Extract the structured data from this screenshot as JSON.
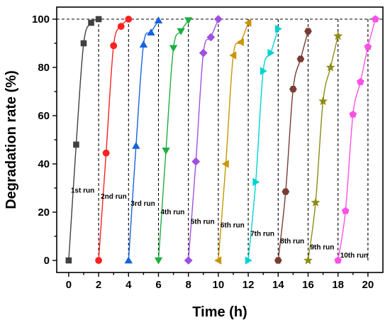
{
  "chart_data": {
    "type": "scatter",
    "title": "",
    "xlabel": "Time (h)",
    "ylabel": "Degradation rate (%)",
    "xlim": [
      -0.8,
      21
    ],
    "ylim": [
      -5,
      105
    ],
    "xticks": [
      0,
      2,
      4,
      6,
      8,
      10,
      12,
      14,
      16,
      18,
      20
    ],
    "yticks": [
      0,
      20,
      40,
      60,
      80,
      100
    ],
    "grid": false,
    "legend": "none",
    "reference_line_y": 100,
    "series": [
      {
        "label": "1st run",
        "color": "#404040",
        "marker": "square",
        "x": [
          0,
          0.5,
          1.0,
          1.5,
          2.0
        ],
        "y": [
          0,
          48,
          90,
          98.5,
          100
        ]
      },
      {
        "label": "2nd run",
        "color": "#ff2020",
        "marker": "circle",
        "x": [
          2.0,
          2.5,
          3.0,
          3.5,
          4.0
        ],
        "y": [
          0,
          44.5,
          89,
          97,
          100
        ]
      },
      {
        "label": "3rd run",
        "color": "#1464dc",
        "marker": "triangle-up",
        "x": [
          4.0,
          4.5,
          5.0,
          5.5,
          6.0
        ],
        "y": [
          0,
          47.5,
          89.5,
          94.5,
          99.5
        ]
      },
      {
        "label": "4th run",
        "color": "#1fae3f",
        "marker": "triangle-down",
        "x": [
          6.0,
          6.5,
          7.0,
          7.5,
          8.0
        ],
        "y": [
          0,
          45.5,
          88,
          95,
          99.5
        ]
      },
      {
        "label": "5th run",
        "color": "#a050e0",
        "marker": "diamond",
        "x": [
          8.0,
          8.5,
          9.0,
          9.5,
          10.0
        ],
        "y": [
          0,
          41,
          86,
          92.5,
          100
        ]
      },
      {
        "label": "6th run",
        "color": "#c89600",
        "marker": "triangle-left",
        "x": [
          10.0,
          10.5,
          11.0,
          11.5,
          12.0
        ],
        "y": [
          0,
          40,
          85,
          90.5,
          98.5
        ]
      },
      {
        "label": "7th run",
        "color": "#00d2d2",
        "marker": "triangle-right",
        "x": [
          12.0,
          12.5,
          13.0,
          13.5,
          14.0
        ],
        "y": [
          0,
          32.5,
          78.5,
          86,
          96
        ]
      },
      {
        "label": "8th run",
        "color": "#7a3c32",
        "marker": "hexagon",
        "x": [
          14.0,
          14.5,
          15.0,
          15.5,
          16.0
        ],
        "y": [
          0,
          28.5,
          71,
          83.5,
          95
        ]
      },
      {
        "label": "9th run",
        "color": "#8c8c14",
        "marker": "star",
        "x": [
          16.0,
          16.5,
          17.0,
          17.5,
          18.0
        ],
        "y": [
          0,
          24,
          66,
          80,
          93
        ]
      },
      {
        "label": "10th run",
        "color": "#ff50e6",
        "marker": "pentagon",
        "x": [
          18.0,
          18.5,
          19.0,
          19.5,
          20.0,
          20.5
        ],
        "y": [
          0,
          20.5,
          60.5,
          74,
          88.5,
          100
        ]
      }
    ],
    "run_boundaries_x": [
      2,
      4,
      6,
      8,
      10,
      12,
      14,
      16,
      18,
      20
    ],
    "run_label_y": [
      29,
      26.5,
      23.5,
      20,
      16,
      14.5,
      11,
      8,
      5.5,
      2
    ]
  }
}
